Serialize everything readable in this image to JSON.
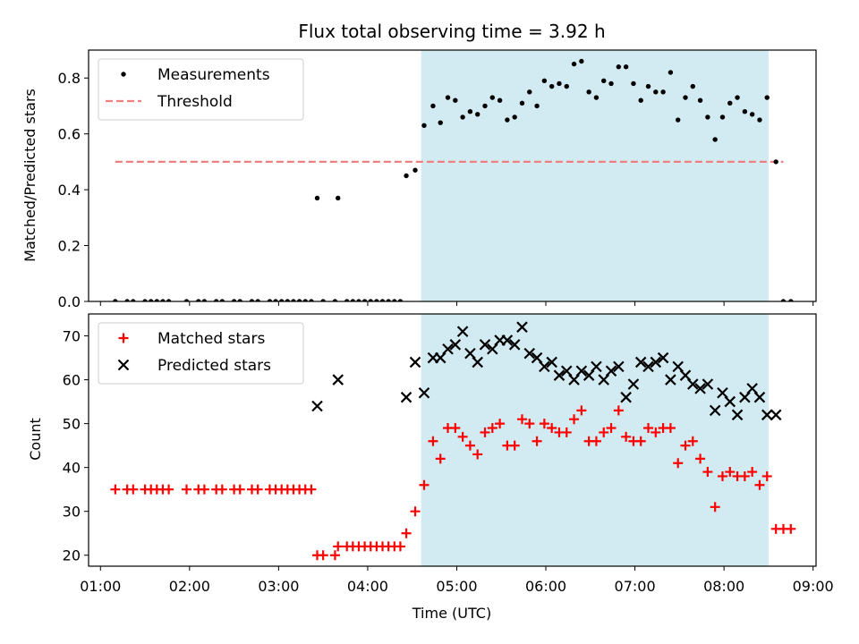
{
  "chart_data": [
    {
      "type": "scatter",
      "title": "Flux total observing time = 3.92 h",
      "xlabel": "",
      "ylabel": "Matched/Predicted stars",
      "ylim": [
        0,
        0.9
      ],
      "xlim": [
        "00:52",
        "09:02"
      ],
      "yticks": [
        0.0,
        0.2,
        0.4,
        0.6,
        0.8
      ],
      "ytick_labels": [
        "0.0",
        "0.2",
        "0.4",
        "0.6",
        "0.8"
      ],
      "grid": false,
      "legend_position": "upper-left",
      "shaded_span": {
        "start": "04:36",
        "end": "08:30",
        "color": "#add8e6"
      },
      "threshold": {
        "name": "Threshold",
        "value": 0.5,
        "x_start": "01:10",
        "x_end": "08:40",
        "color": "#f08080",
        "style": "dashed"
      },
      "series": [
        {
          "name": "Measurements",
          "color": "#000000",
          "marker": "dot",
          "points": [
            [
              "01:10",
              0
            ],
            [
              "01:18",
              0
            ],
            [
              "01:22",
              0
            ],
            [
              "01:30",
              0
            ],
            [
              "01:34",
              0
            ],
            [
              "01:38",
              0
            ],
            [
              "01:42",
              0
            ],
            [
              "01:46",
              0
            ],
            [
              "01:58",
              0
            ],
            [
              "02:06",
              0
            ],
            [
              "02:10",
              0
            ],
            [
              "02:18",
              0
            ],
            [
              "02:22",
              0
            ],
            [
              "02:30",
              0
            ],
            [
              "02:34",
              0
            ],
            [
              "02:42",
              0
            ],
            [
              "02:46",
              0
            ],
            [
              "02:54",
              0
            ],
            [
              "02:58",
              0
            ],
            [
              "03:02",
              0
            ],
            [
              "03:06",
              0
            ],
            [
              "03:10",
              0
            ],
            [
              "03:14",
              0
            ],
            [
              "03:18",
              0
            ],
            [
              "03:22",
              0
            ],
            [
              "03:26",
              0.37
            ],
            [
              "03:30",
              0
            ],
            [
              "03:38",
              0
            ],
            [
              "03:40",
              0.37
            ],
            [
              "03:46",
              0
            ],
            [
              "03:50",
              0
            ],
            [
              "03:54",
              0
            ],
            [
              "03:58",
              0
            ],
            [
              "04:02",
              0
            ],
            [
              "04:06",
              0
            ],
            [
              "04:10",
              0
            ],
            [
              "04:14",
              0
            ],
            [
              "04:18",
              0
            ],
            [
              "04:22",
              0
            ],
            [
              "04:26",
              0.45
            ],
            [
              "04:32",
              0.47
            ],
            [
              "04:38",
              0.63
            ],
            [
              "04:44",
              0.7
            ],
            [
              "04:49",
              0.64
            ],
            [
              "04:54",
              0.73
            ],
            [
              "04:59",
              0.72
            ],
            [
              "05:04",
              0.66
            ],
            [
              "05:09",
              0.68
            ],
            [
              "05:14",
              0.67
            ],
            [
              "05:19",
              0.7
            ],
            [
              "05:24",
              0.73
            ],
            [
              "05:29",
              0.72
            ],
            [
              "05:34",
              0.65
            ],
            [
              "05:39",
              0.66
            ],
            [
              "05:44",
              0.71
            ],
            [
              "05:49",
              0.75
            ],
            [
              "05:54",
              0.7
            ],
            [
              "05:59",
              0.79
            ],
            [
              "06:04",
              0.77
            ],
            [
              "06:09",
              0.78
            ],
            [
              "06:14",
              0.77
            ],
            [
              "06:19",
              0.85
            ],
            [
              "06:24",
              0.86
            ],
            [
              "06:29",
              0.75
            ],
            [
              "06:34",
              0.73
            ],
            [
              "06:39",
              0.79
            ],
            [
              "06:44",
              0.78
            ],
            [
              "06:49",
              0.84
            ],
            [
              "06:54",
              0.84
            ],
            [
              "06:59",
              0.78
            ],
            [
              "07:04",
              0.72
            ],
            [
              "07:09",
              0.77
            ],
            [
              "07:14",
              0.75
            ],
            [
              "07:19",
              0.75
            ],
            [
              "07:24",
              0.82
            ],
            [
              "07:29",
              0.65
            ],
            [
              "07:34",
              0.73
            ],
            [
              "07:39",
              0.77
            ],
            [
              "07:44",
              0.72
            ],
            [
              "07:49",
              0.66
            ],
            [
              "07:54",
              0.58
            ],
            [
              "07:59",
              0.66
            ],
            [
              "08:04",
              0.71
            ],
            [
              "08:09",
              0.73
            ],
            [
              "08:14",
              0.68
            ],
            [
              "08:19",
              0.67
            ],
            [
              "08:24",
              0.65
            ],
            [
              "08:29",
              0.73
            ],
            [
              "08:35",
              0.5
            ],
            [
              "08:40",
              0
            ],
            [
              "08:45",
              0
            ]
          ]
        }
      ]
    },
    {
      "type": "scatter",
      "title": "",
      "xlabel": "Time (UTC)",
      "ylabel": "Count",
      "ylim": [
        17.5,
        75
      ],
      "xlim": [
        "00:52",
        "09:02"
      ],
      "yticks": [
        20,
        30,
        40,
        50,
        60,
        70
      ],
      "ytick_labels": [
        "20",
        "30",
        "40",
        "50",
        "60",
        "70"
      ],
      "xticks": [
        "01:00",
        "02:00",
        "03:00",
        "04:00",
        "05:00",
        "06:00",
        "07:00",
        "08:00",
        "09:00"
      ],
      "xtick_labels": [
        "01:00",
        "02:00",
        "03:00",
        "04:00",
        "05:00",
        "06:00",
        "07:00",
        "08:00",
        "09:00"
      ],
      "grid": false,
      "legend_position": "upper-left",
      "shaded_span": {
        "start": "04:36",
        "end": "08:30",
        "color": "#add8e6"
      },
      "series": [
        {
          "name": "Matched stars",
          "color": "#ff0000",
          "marker": "plus",
          "points": [
            [
              "01:10",
              35
            ],
            [
              "01:18",
              35
            ],
            [
              "01:22",
              35
            ],
            [
              "01:30",
              35
            ],
            [
              "01:34",
              35
            ],
            [
              "01:38",
              35
            ],
            [
              "01:42",
              35
            ],
            [
              "01:46",
              35
            ],
            [
              "01:58",
              35
            ],
            [
              "02:06",
              35
            ],
            [
              "02:10",
              35
            ],
            [
              "02:18",
              35
            ],
            [
              "02:22",
              35
            ],
            [
              "02:30",
              35
            ],
            [
              "02:34",
              35
            ],
            [
              "02:42",
              35
            ],
            [
              "02:46",
              35
            ],
            [
              "02:54",
              35
            ],
            [
              "02:58",
              35
            ],
            [
              "03:02",
              35
            ],
            [
              "03:06",
              35
            ],
            [
              "03:10",
              35
            ],
            [
              "03:14",
              35
            ],
            [
              "03:18",
              35
            ],
            [
              "03:22",
              35
            ],
            [
              "03:26",
              20
            ],
            [
              "03:30",
              20
            ],
            [
              "03:38",
              20
            ],
            [
              "03:40",
              22
            ],
            [
              "03:46",
              22
            ],
            [
              "03:50",
              22
            ],
            [
              "03:54",
              22
            ],
            [
              "03:58",
              22
            ],
            [
              "04:02",
              22
            ],
            [
              "04:06",
              22
            ],
            [
              "04:10",
              22
            ],
            [
              "04:14",
              22
            ],
            [
              "04:18",
              22
            ],
            [
              "04:22",
              22
            ],
            [
              "04:26",
              25
            ],
            [
              "04:32",
              30
            ],
            [
              "04:38",
              36
            ],
            [
              "04:44",
              46
            ],
            [
              "04:49",
              42
            ],
            [
              "04:54",
              49
            ],
            [
              "04:59",
              49
            ],
            [
              "05:04",
              47
            ],
            [
              "05:09",
              45
            ],
            [
              "05:14",
              43
            ],
            [
              "05:19",
              48
            ],
            [
              "05:24",
              49
            ],
            [
              "05:29",
              50
            ],
            [
              "05:34",
              45
            ],
            [
              "05:39",
              45
            ],
            [
              "05:44",
              51
            ],
            [
              "05:49",
              50
            ],
            [
              "05:54",
              46
            ],
            [
              "05:59",
              50
            ],
            [
              "06:04",
              49
            ],
            [
              "06:09",
              48
            ],
            [
              "06:14",
              48
            ],
            [
              "06:19",
              51
            ],
            [
              "06:24",
              53
            ],
            [
              "06:29",
              46
            ],
            [
              "06:34",
              46
            ],
            [
              "06:39",
              48
            ],
            [
              "06:44",
              49
            ],
            [
              "06:49",
              53
            ],
            [
              "06:54",
              47
            ],
            [
              "06:59",
              46
            ],
            [
              "07:04",
              46
            ],
            [
              "07:09",
              49
            ],
            [
              "07:14",
              48
            ],
            [
              "07:19",
              49
            ],
            [
              "07:24",
              49
            ],
            [
              "07:29",
              41
            ],
            [
              "07:34",
              45
            ],
            [
              "07:39",
              46
            ],
            [
              "07:44",
              42
            ],
            [
              "07:49",
              39
            ],
            [
              "07:54",
              31
            ],
            [
              "07:59",
              38
            ],
            [
              "08:04",
              39
            ],
            [
              "08:09",
              38
            ],
            [
              "08:14",
              38
            ],
            [
              "08:19",
              39
            ],
            [
              "08:24",
              36
            ],
            [
              "08:29",
              38
            ],
            [
              "08:35",
              26
            ],
            [
              "08:40",
              26
            ],
            [
              "08:45",
              26
            ]
          ]
        },
        {
          "name": "Predicted stars",
          "color": "#000000",
          "marker": "x",
          "points": [
            [
              "03:26",
              54
            ],
            [
              "03:40",
              60
            ],
            [
              "04:26",
              56
            ],
            [
              "04:32",
              64
            ],
            [
              "04:38",
              57
            ],
            [
              "04:44",
              65
            ],
            [
              "04:49",
              65
            ],
            [
              "04:54",
              67
            ],
            [
              "04:59",
              68
            ],
            [
              "05:04",
              71
            ],
            [
              "05:09",
              66
            ],
            [
              "05:14",
              64
            ],
            [
              "05:19",
              68
            ],
            [
              "05:24",
              67
            ],
            [
              "05:29",
              69
            ],
            [
              "05:34",
              69
            ],
            [
              "05:39",
              68
            ],
            [
              "05:44",
              72
            ],
            [
              "05:49",
              66
            ],
            [
              "05:54",
              65
            ],
            [
              "05:59",
              63
            ],
            [
              "06:04",
              64
            ],
            [
              "06:09",
              61
            ],
            [
              "06:14",
              62
            ],
            [
              "06:19",
              60
            ],
            [
              "06:24",
              62
            ],
            [
              "06:29",
              61
            ],
            [
              "06:34",
              63
            ],
            [
              "06:39",
              60
            ],
            [
              "06:44",
              62
            ],
            [
              "06:49",
              63
            ],
            [
              "06:54",
              56
            ],
            [
              "06:59",
              59
            ],
            [
              "07:04",
              64
            ],
            [
              "07:09",
              63
            ],
            [
              "07:14",
              64
            ],
            [
              "07:19",
              65
            ],
            [
              "07:24",
              60
            ],
            [
              "07:29",
              63
            ],
            [
              "07:34",
              61
            ],
            [
              "07:39",
              59
            ],
            [
              "07:44",
              58
            ],
            [
              "07:49",
              59
            ],
            [
              "07:54",
              53
            ],
            [
              "07:59",
              57
            ],
            [
              "08:04",
              55
            ],
            [
              "08:09",
              52
            ],
            [
              "08:14",
              56
            ],
            [
              "08:19",
              58
            ],
            [
              "08:24",
              56
            ],
            [
              "08:29",
              52
            ],
            [
              "08:35",
              52
            ]
          ]
        }
      ]
    }
  ]
}
